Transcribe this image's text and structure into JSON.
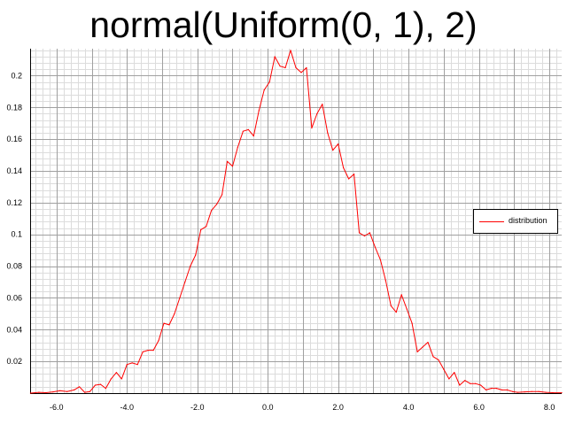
{
  "chart_data": {
    "type": "line",
    "title": "normal(Uniform(0, 1), 2)",
    "xlabel": "",
    "ylabel": "",
    "xlim": [
      -6.75,
      8.35
    ],
    "ylim": [
      0.0,
      0.217
    ],
    "x_ticks": [
      -6.0,
      -4.0,
      -2.0,
      0.0,
      2.0,
      4.0,
      6.0,
      8.0
    ],
    "x_tick_labels": [
      "-6.0",
      "-4.0",
      "-2.0",
      "0.0",
      "2.0",
      "4.0",
      "6.0",
      "8.0"
    ],
    "y_ticks": [
      0.02,
      0.04,
      0.06,
      0.08,
      0.1,
      0.12,
      0.14,
      0.16,
      0.18,
      0.2
    ],
    "y_tick_labels": [
      "0.02",
      "0.04",
      "0.06",
      "0.08",
      "0.1",
      "0.12",
      "0.14",
      "0.16",
      "0.18",
      "0.2"
    ],
    "grid": true,
    "legend_position": "right",
    "colors": {
      "series": "#ff0000",
      "grid_major": "#a0a0a0",
      "grid_minor": "#dcdcdc"
    },
    "series": [
      {
        "name": "distribution",
        "x": [
          -6.74,
          -6.5,
          -6.3,
          -6.1,
          -5.9,
          -5.7,
          -5.5,
          -5.35,
          -5.2,
          -5.05,
          -4.9,
          -4.75,
          -4.6,
          -4.45,
          -4.3,
          -4.15,
          -4.0,
          -3.85,
          -3.7,
          -3.55,
          -3.4,
          -3.25,
          -3.1,
          -2.95,
          -2.8,
          -2.65,
          -2.5,
          -2.35,
          -2.2,
          -2.05,
          -1.9,
          -1.75,
          -1.6,
          -1.45,
          -1.3,
          -1.15,
          -1.0,
          -0.85,
          -0.7,
          -0.55,
          -0.4,
          -0.25,
          -0.1,
          0.05,
          0.2,
          0.35,
          0.5,
          0.65,
          0.8,
          0.95,
          1.1,
          1.25,
          1.4,
          1.55,
          1.7,
          1.85,
          2.0,
          2.15,
          2.3,
          2.45,
          2.6,
          2.75,
          2.9,
          3.05,
          3.2,
          3.35,
          3.5,
          3.65,
          3.8,
          3.95,
          4.1,
          4.25,
          4.4,
          4.55,
          4.7,
          4.85,
          5.0,
          5.15,
          5.3,
          5.45,
          5.6,
          5.75,
          5.9,
          6.05,
          6.2,
          6.35,
          6.5,
          6.65,
          6.8,
          6.95,
          7.1,
          7.3,
          7.5,
          7.7,
          7.9,
          8.1,
          8.35
        ],
        "y": [
          0.0,
          0.0005,
          0.0003,
          0.0008,
          0.0015,
          0.001,
          0.002,
          0.004,
          0.0005,
          0.001,
          0.005,
          0.0055,
          0.003,
          0.009,
          0.013,
          0.009,
          0.018,
          0.019,
          0.018,
          0.026,
          0.027,
          0.027,
          0.033,
          0.044,
          0.043,
          0.05,
          0.06,
          0.07,
          0.08,
          0.087,
          0.103,
          0.105,
          0.115,
          0.119,
          0.125,
          0.146,
          0.143,
          0.155,
          0.165,
          0.166,
          0.162,
          0.178,
          0.191,
          0.196,
          0.212,
          0.206,
          0.205,
          0.216,
          0.205,
          0.202,
          0.205,
          0.167,
          0.176,
          0.182,
          0.164,
          0.153,
          0.157,
          0.142,
          0.135,
          0.138,
          0.101,
          0.099,
          0.101,
          0.092,
          0.084,
          0.071,
          0.055,
          0.051,
          0.062,
          0.053,
          0.044,
          0.026,
          0.029,
          0.032,
          0.023,
          0.021,
          0.015,
          0.009,
          0.013,
          0.005,
          0.008,
          0.006,
          0.006,
          0.005,
          0.002,
          0.003,
          0.003,
          0.002,
          0.002,
          0.001,
          0.0005,
          0.0008,
          0.001,
          0.001,
          0.0005,
          0.0003,
          0.0002
        ]
      }
    ]
  }
}
